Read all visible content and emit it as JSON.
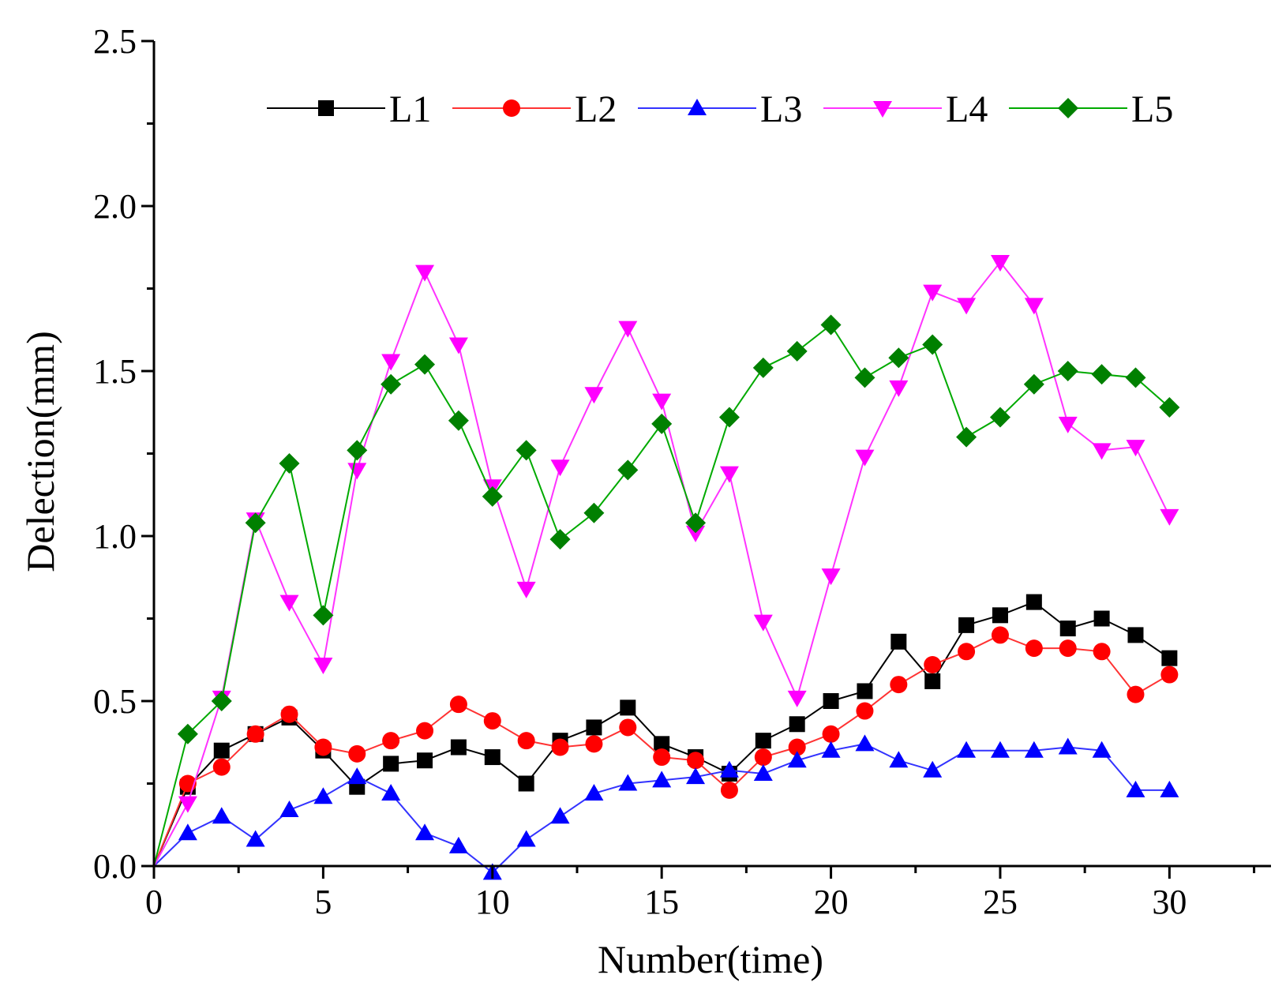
{
  "chart_data": {
    "type": "line",
    "title": "",
    "xlabel": "Number(time)",
    "ylabel": "Delection(mm)",
    "xlim": [
      0,
      33
    ],
    "ylim": [
      0,
      2.5
    ],
    "x_ticks": [
      0,
      5,
      10,
      15,
      20,
      25,
      30
    ],
    "x_tick_labels": [
      "0",
      "5",
      "10",
      "15",
      "20",
      "25",
      "30"
    ],
    "y_ticks": [
      0,
      0.5,
      1.0,
      1.5,
      2.0,
      2.5
    ],
    "y_tick_labels": [
      "0.0",
      "0.5",
      "1.0",
      "1.5",
      "2.0",
      "2.5"
    ],
    "legend_position": "top-right",
    "grid": false,
    "x": [
      0,
      1,
      2,
      3,
      4,
      5,
      6,
      7,
      8,
      9,
      10,
      11,
      12,
      13,
      14,
      15,
      16,
      17,
      18,
      19,
      20,
      21,
      22,
      23,
      24,
      25,
      26,
      27,
      28,
      29,
      30
    ],
    "series": [
      {
        "name": "L1",
        "line_color": "#000000",
        "marker": "square",
        "marker_color": "#000000",
        "values": [
          0,
          0.24,
          0.35,
          0.4,
          0.45,
          0.35,
          0.24,
          0.31,
          0.32,
          0.36,
          0.33,
          0.25,
          0.38,
          0.42,
          0.48,
          0.37,
          0.33,
          0.28,
          0.38,
          0.43,
          0.5,
          0.53,
          0.68,
          0.56,
          0.73,
          0.76,
          0.8,
          0.72,
          0.75,
          0.7,
          0.63
        ]
      },
      {
        "name": "L2",
        "line_color": "#ff3333",
        "marker": "circle",
        "marker_color": "#ff0000",
        "values": [
          0,
          0.25,
          0.3,
          0.4,
          0.46,
          0.36,
          0.34,
          0.38,
          0.41,
          0.49,
          0.44,
          0.38,
          0.36,
          0.37,
          0.42,
          0.33,
          0.32,
          0.23,
          0.33,
          0.36,
          0.4,
          0.47,
          0.55,
          0.61,
          0.65,
          0.7,
          0.66,
          0.66,
          0.65,
          0.52,
          0.58
        ]
      },
      {
        "name": "L3",
        "line_color": "#3333ff",
        "marker": "triangle-up",
        "marker_color": "#0000ff",
        "values": [
          0,
          0.1,
          0.15,
          0.08,
          0.17,
          0.21,
          0.27,
          0.22,
          0.1,
          0.06,
          -0.02,
          0.08,
          0.15,
          0.22,
          0.25,
          0.26,
          0.27,
          0.29,
          0.28,
          0.32,
          0.35,
          0.37,
          0.32,
          0.29,
          0.35,
          0.35,
          0.35,
          0.36,
          0.35,
          0.23,
          0.23
        ]
      },
      {
        "name": "L4",
        "line_color": "#ff33ff",
        "marker": "triangle-down",
        "marker_color": "#ff00ff",
        "values": [
          0,
          0.19,
          0.51,
          1.05,
          0.8,
          0.61,
          1.2,
          1.53,
          1.8,
          1.58,
          1.15,
          0.84,
          1.21,
          1.43,
          1.63,
          1.41,
          1.01,
          1.19,
          0.74,
          0.51,
          0.88,
          1.24,
          1.45,
          1.74,
          1.7,
          1.83,
          1.7,
          1.34,
          1.26,
          1.27,
          1.06
        ]
      },
      {
        "name": "L5",
        "line_color": "#00aa00",
        "marker": "diamond",
        "marker_color": "#008000",
        "values": [
          0,
          0.4,
          0.5,
          1.04,
          1.22,
          0.76,
          1.26,
          1.46,
          1.52,
          1.35,
          1.12,
          1.26,
          0.99,
          1.07,
          1.2,
          1.34,
          1.04,
          1.36,
          1.51,
          1.56,
          1.64,
          1.48,
          1.54,
          1.58,
          1.3,
          1.36,
          1.46,
          1.5,
          1.49,
          1.48,
          1.39
        ]
      }
    ]
  }
}
